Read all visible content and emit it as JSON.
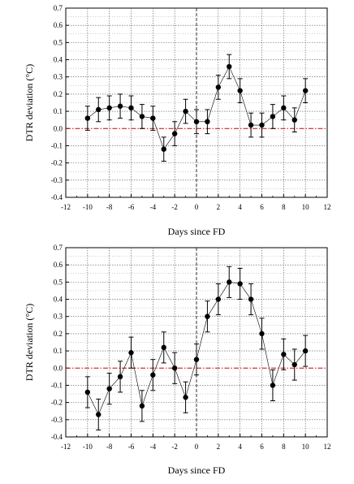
{
  "chart_data": [
    {
      "type": "scatter",
      "xlabel": "Days since FD",
      "ylabel": "DTR deviation (°C)",
      "xlim": [
        -12,
        12
      ],
      "ylim": [
        -0.4,
        0.7
      ],
      "xticks": [
        -12,
        -10,
        -8,
        -6,
        -4,
        -2,
        0,
        2,
        4,
        6,
        8,
        10,
        12
      ],
      "yticks": [
        -0.4,
        -0.3,
        -0.2,
        -0.1,
        0.0,
        0.1,
        0.2,
        0.3,
        0.4,
        0.5,
        0.6,
        0.7
      ],
      "ytick_labels": [
        "-0.4",
        "-0.3",
        "-0.2",
        "-0.1",
        "0.0",
        "0.1",
        "0.2",
        "0.3",
        "0.4",
        "0.5",
        "0.6",
        "0.7"
      ],
      "grid": true,
      "zero_line_color": "#cc0000",
      "marker_color": "#000000",
      "x": [
        -10,
        -9,
        -8,
        -7,
        -6,
        -5,
        -4,
        -3,
        -2,
        -1,
        0,
        1,
        2,
        3,
        4,
        5,
        6,
        7,
        8,
        9,
        10
      ],
      "y": [
        0.06,
        0.11,
        0.12,
        0.13,
        0.12,
        0.07,
        0.06,
        -0.12,
        -0.03,
        0.1,
        0.04,
        0.04,
        0.24,
        0.36,
        0.22,
        0.02,
        0.02,
        0.07,
        0.12,
        0.05,
        0.22
      ],
      "yerr": [
        0.07,
        0.07,
        0.07,
        0.07,
        0.07,
        0.07,
        0.07,
        0.07,
        0.07,
        0.07,
        0.07,
        0.07,
        0.07,
        0.07,
        0.07,
        0.07,
        0.07,
        0.07,
        0.07,
        0.07,
        0.07
      ]
    },
    {
      "type": "scatter",
      "xlabel": "Days since FD",
      "ylabel": "DTR deviation (°C)",
      "xlim": [
        -12,
        12
      ],
      "ylim": [
        -0.4,
        0.7
      ],
      "xticks": [
        -12,
        -10,
        -8,
        -6,
        -4,
        -2,
        0,
        2,
        4,
        6,
        8,
        10,
        12
      ],
      "yticks": [
        -0.4,
        -0.3,
        -0.2,
        -0.1,
        0.0,
        0.1,
        0.2,
        0.3,
        0.4,
        0.5,
        0.6,
        0.7
      ],
      "ytick_labels": [
        "-0.4",
        "-0.3",
        "-0.2",
        "-0.1",
        "0.0",
        "0.1",
        "0.2",
        "0.3",
        "0.4",
        "0.5",
        "0.6",
        "0.7"
      ],
      "grid": true,
      "zero_line_color": "#cc0000",
      "marker_color": "#000000",
      "x": [
        -10,
        -9,
        -8,
        -7,
        -6,
        -5,
        -4,
        -3,
        -2,
        -1,
        0,
        1,
        2,
        3,
        4,
        5,
        6,
        7,
        8,
        9,
        10
      ],
      "y": [
        -0.14,
        -0.27,
        -0.12,
        -0.05,
        0.09,
        -0.22,
        -0.04,
        0.12,
        0.0,
        -0.17,
        0.05,
        0.3,
        0.4,
        0.5,
        0.49,
        0.4,
        0.2,
        -0.1,
        0.08,
        0.02,
        0.1
      ],
      "yerr": [
        0.09,
        0.09,
        0.09,
        0.09,
        0.09,
        0.09,
        0.09,
        0.09,
        0.09,
        0.09,
        0.09,
        0.09,
        0.09,
        0.09,
        0.09,
        0.09,
        0.09,
        0.09,
        0.09,
        0.09,
        0.09
      ]
    }
  ]
}
